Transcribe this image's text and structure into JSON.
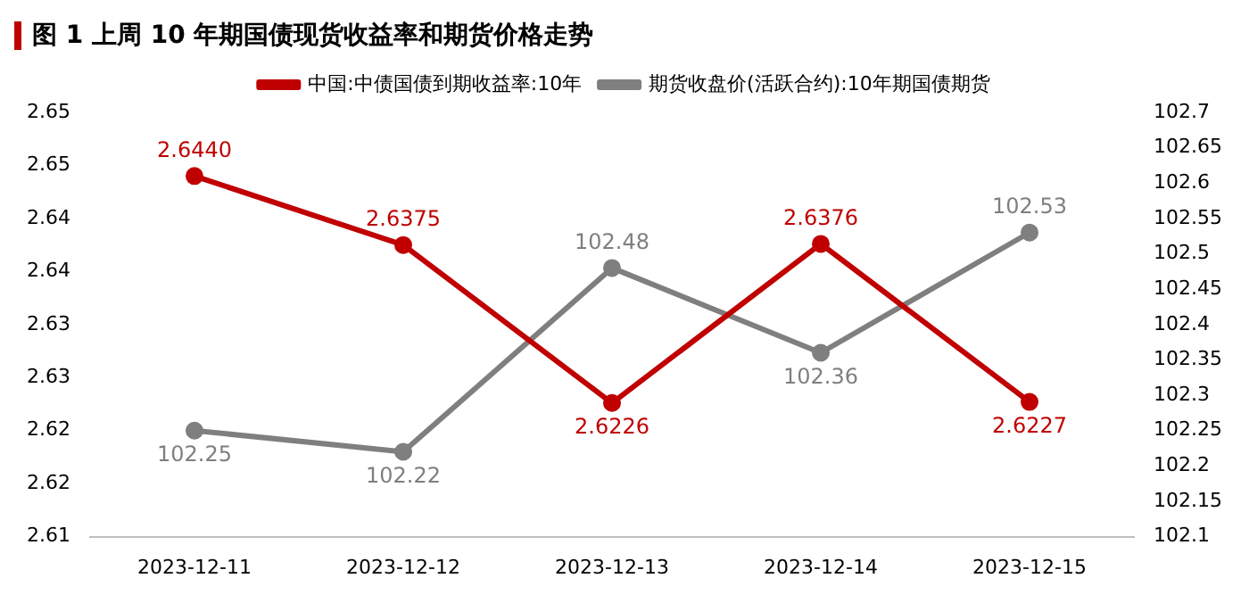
{
  "chart_data": {
    "type": "line",
    "title": "图 1 上周 10 年期国债现货收益率和期货价格走势",
    "categories": [
      "2023-12-11",
      "2023-12-12",
      "2023-12-13",
      "2023-12-14",
      "2023-12-15"
    ],
    "series": [
      {
        "name": "中国:中债国债到期收益率:10年",
        "color": "#c00000",
        "values": [
          2.644,
          2.6375,
          2.6226,
          2.6376,
          2.6227
        ],
        "value_labels": [
          "2.6440",
          "2.6375",
          "2.6226",
          "2.6376",
          "2.6227"
        ]
      },
      {
        "name": "期货收盘价(活跃合约):10年期国债期货",
        "color": "#7f7f7f",
        "axis": "y2",
        "values": [
          102.25,
          102.22,
          102.48,
          102.36,
          102.53
        ],
        "value_labels": [
          "102.25",
          "102.22",
          "102.48",
          "102.36",
          "102.53"
        ]
      }
    ],
    "ylim": [
      2.61,
      2.65
    ],
    "yticks": [
      2.61,
      {
        "value": 2.615,
        "label": "2.62"
      },
      2.62,
      {
        "value": 2.625,
        "label": "2.63"
      },
      2.63,
      {
        "value": 2.635,
        "label": "2.64"
      },
      2.64,
      {
        "value": 2.645,
        "label": "2.65"
      },
      2.65
    ],
    "y2lim": [
      102.1,
      102.7
    ],
    "y2ticks": [
      102.1,
      102.15,
      102.2,
      102.25,
      102.3,
      102.35,
      102.4,
      102.45,
      102.5,
      102.55,
      102.6,
      102.65,
      102.7
    ],
    "legend": "top",
    "marker": "circle",
    "line_style": "solid",
    "grid": false
  }
}
